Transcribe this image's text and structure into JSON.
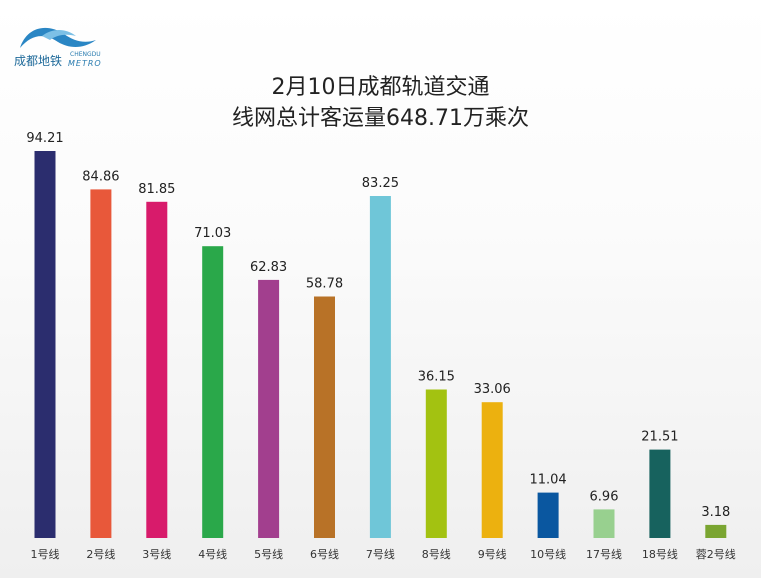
{
  "logo": {
    "cn": "成都地铁",
    "en_small": "CHENGDU",
    "en": "METRO"
  },
  "title": {
    "line1": "2月10日成都轨道交通",
    "line2": "线网总计客运量648.71万乘次"
  },
  "chart_data": {
    "type": "bar",
    "title": "2月10日成都轨道交通 线网总计客运量648.71万乘次",
    "categories": [
      "1号线",
      "2号线",
      "3号线",
      "4号线",
      "5号线",
      "6号线",
      "7号线",
      "8号线",
      "9号线",
      "10号线",
      "17号线",
      "18号线",
      "蓉2号线"
    ],
    "values": [
      94.21,
      84.86,
      81.85,
      71.03,
      62.83,
      58.78,
      83.25,
      36.15,
      33.06,
      11.04,
      6.96,
      21.51,
      3.18
    ],
    "value_labels": [
      "94.21",
      "84.86",
      "81.85",
      "71.03",
      "62.83",
      "58.78",
      "83.25",
      "36.15",
      "33.06",
      "11.04",
      "6.96",
      "21.51",
      "3.18"
    ],
    "colors": [
      "#2b2d6e",
      "#e8583a",
      "#d81b6b",
      "#2aa84a",
      "#a23f8e",
      "#b87227",
      "#6fc6d8",
      "#a3c211",
      "#ecb10f",
      "#0a57a0",
      "#98d08f",
      "#17625e",
      "#7aa531"
    ],
    "ylim": [
      0,
      100
    ],
    "grid": false,
    "legend": "none",
    "xlabel": "",
    "ylabel": ""
  }
}
